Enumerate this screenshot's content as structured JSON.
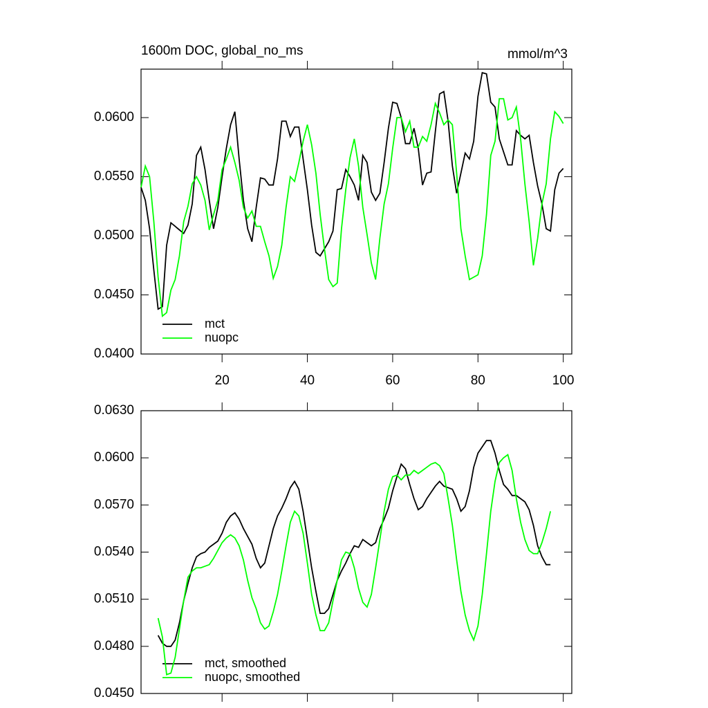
{
  "chart_data": [
    {
      "type": "line",
      "title": "1600m DOC, global_no_ms",
      "units": "mmol/m^3",
      "x": [
        1,
        2,
        3,
        4,
        5,
        6,
        7,
        8,
        9,
        10,
        11,
        12,
        13,
        14,
        15,
        16,
        17,
        18,
        19,
        20,
        21,
        22,
        23,
        24,
        25,
        26,
        27,
        28,
        29,
        30,
        31,
        32,
        33,
        34,
        35,
        36,
        37,
        38,
        39,
        40,
        41,
        42,
        43,
        44,
        45,
        46,
        47,
        48,
        49,
        50,
        51,
        52,
        53,
        54,
        55,
        56,
        57,
        58,
        59,
        60,
        61,
        62,
        63,
        64,
        65,
        66,
        67,
        68,
        69,
        70,
        71,
        72,
        73,
        74,
        75,
        76,
        77,
        78,
        79,
        80,
        81,
        82,
        83,
        84,
        85,
        86,
        87,
        88,
        89,
        90,
        91,
        92,
        93,
        94,
        95,
        96,
        97,
        98,
        99,
        100
      ],
      "xlim": [
        1,
        102
      ],
      "xticks": [
        20,
        40,
        60,
        80,
        100
      ],
      "ylim": [
        0.04,
        0.0641
      ],
      "yticks": [
        {
          "value": 0.04,
          "label": "0.0400"
        },
        {
          "value": 0.045,
          "label": "0.0450"
        },
        {
          "value": 0.05,
          "label": "0.0500"
        },
        {
          "value": 0.055,
          "label": "0.0550"
        },
        {
          "value": 0.06,
          "label": "0.0600"
        }
      ],
      "legend": "lower left",
      "series": [
        {
          "name": "mct",
          "color": "#000000",
          "values": [
            0.0541,
            0.053,
            0.0506,
            0.0471,
            0.0438,
            0.044,
            0.0492,
            0.0511,
            0.0508,
            0.0505,
            0.0502,
            0.0509,
            0.0527,
            0.0568,
            0.0575,
            0.0556,
            0.053,
            0.0506,
            0.0524,
            0.055,
            0.0574,
            0.0594,
            0.0605,
            0.0565,
            0.053,
            0.0506,
            0.0495,
            0.0524,
            0.0549,
            0.0548,
            0.0543,
            0.0543,
            0.0565,
            0.0597,
            0.0597,
            0.0584,
            0.0592,
            0.0592,
            0.0565,
            0.0539,
            0.0509,
            0.0486,
            0.0483,
            0.0489,
            0.0495,
            0.0504,
            0.0539,
            0.054,
            0.0556,
            0.055,
            0.0543,
            0.053,
            0.0568,
            0.0562,
            0.0537,
            0.053,
            0.0536,
            0.0562,
            0.0591,
            0.0613,
            0.0612,
            0.06,
            0.0578,
            0.0578,
            0.0591,
            0.0574,
            0.0543,
            0.0553,
            0.0554,
            0.0588,
            0.062,
            0.0622,
            0.0597,
            0.0559,
            0.0536,
            0.0553,
            0.057,
            0.0565,
            0.058,
            0.0618,
            0.0638,
            0.0637,
            0.0613,
            0.0609,
            0.0582,
            0.0571,
            0.056,
            0.056,
            0.0589,
            0.0585,
            0.0582,
            0.0585,
            0.0562,
            0.0542,
            0.0527,
            0.0506,
            0.0504,
            0.0539,
            0.0553,
            0.0557
          ]
        },
        {
          "name": "nuopc",
          "color": "#00ff00",
          "values": [
            0.0541,
            0.0559,
            0.055,
            0.0512,
            0.0465,
            0.0432,
            0.0435,
            0.0454,
            0.0463,
            0.0483,
            0.0512,
            0.0525,
            0.0544,
            0.055,
            0.0543,
            0.053,
            0.0505,
            0.0518,
            0.053,
            0.0556,
            0.0565,
            0.0575,
            0.0562,
            0.0547,
            0.0524,
            0.0515,
            0.0521,
            0.0508,
            0.0508,
            0.0495,
            0.0483,
            0.0464,
            0.0474,
            0.0492,
            0.0524,
            0.055,
            0.0546,
            0.0562,
            0.058,
            0.0594,
            0.0577,
            0.0553,
            0.0518,
            0.0489,
            0.0463,
            0.0457,
            0.046,
            0.0506,
            0.0539,
            0.0566,
            0.0582,
            0.0559,
            0.0524,
            0.0501,
            0.0477,
            0.0463,
            0.0498,
            0.0527,
            0.0544,
            0.0574,
            0.06,
            0.06,
            0.0588,
            0.0597,
            0.0575,
            0.0575,
            0.0584,
            0.058,
            0.0594,
            0.0612,
            0.0604,
            0.0594,
            0.0598,
            0.0594,
            0.0553,
            0.0506,
            0.0483,
            0.0463,
            0.0465,
            0.0467,
            0.0483,
            0.0518,
            0.0568,
            0.058,
            0.0616,
            0.0616,
            0.0598,
            0.06,
            0.0609,
            0.0582,
            0.0544,
            0.0512,
            0.0475,
            0.0498,
            0.0527,
            0.0544,
            0.0582,
            0.0605,
            0.0601,
            0.0595
          ]
        }
      ]
    },
    {
      "type": "line",
      "x": [
        1,
        2,
        3,
        4,
        5,
        6,
        7,
        8,
        9,
        10,
        11,
        12,
        13,
        14,
        15,
        16,
        17,
        18,
        19,
        20,
        21,
        22,
        23,
        24,
        25,
        26,
        27,
        28,
        29,
        30,
        31,
        32,
        33,
        34,
        35,
        36,
        37,
        38,
        39,
        40,
        41,
        42,
        43,
        44,
        45,
        46,
        47,
        48,
        49,
        50,
        51,
        52,
        53,
        54,
        55,
        56,
        57,
        58,
        59,
        60,
        61,
        62,
        63,
        64,
        65,
        66,
        67,
        68,
        69,
        70,
        71,
        72,
        73,
        74,
        75,
        76,
        77,
        78,
        79,
        80,
        81,
        82,
        83,
        84,
        85,
        86,
        87,
        88,
        89,
        90,
        91,
        92,
        93,
        94,
        95,
        96,
        97,
        98,
        99,
        100
      ],
      "xlim": [
        1,
        102
      ],
      "xticks": [
        20,
        40,
        60,
        80,
        100
      ],
      "xtick_labels": false,
      "ylim": [
        0.045,
        0.063
      ],
      "yticks": [
        {
          "value": 0.045,
          "label": "0.0450"
        },
        {
          "value": 0.048,
          "label": "0.0480"
        },
        {
          "value": 0.051,
          "label": "0.0510"
        },
        {
          "value": 0.054,
          "label": "0.0540"
        },
        {
          "value": 0.057,
          "label": "0.0570"
        },
        {
          "value": 0.06,
          "label": "0.0600"
        },
        {
          "value": 0.063,
          "label": "0.0630"
        }
      ],
      "legend": "lower left",
      "series": [
        {
          "name": "mct, smoothed",
          "color": "#000000",
          "values": [
            null,
            null,
            null,
            null,
            0.0487,
            0.0482,
            0.048,
            0.048,
            0.0484,
            0.0495,
            0.0509,
            0.052,
            0.053,
            0.0537,
            0.0539,
            0.054,
            0.0543,
            0.0545,
            0.0547,
            0.0552,
            0.0559,
            0.0563,
            0.0565,
            0.0561,
            0.0555,
            0.055,
            0.0545,
            0.0536,
            0.053,
            0.0533,
            0.0544,
            0.0555,
            0.0563,
            0.0568,
            0.0574,
            0.0581,
            0.0585,
            0.058,
            0.0566,
            0.0548,
            0.053,
            0.0515,
            0.0501,
            0.0501,
            0.0504,
            0.0513,
            0.0522,
            0.0528,
            0.0533,
            0.0539,
            0.0544,
            0.0543,
            0.0548,
            0.0546,
            0.0544,
            0.0546,
            0.0555,
            0.0561,
            0.0568,
            0.0579,
            0.0588,
            0.0596,
            0.0593,
            0.0583,
            0.0574,
            0.0567,
            0.0569,
            0.0574,
            0.0578,
            0.0582,
            0.0585,
            0.0582,
            0.0581,
            0.058,
            0.0574,
            0.0566,
            0.0569,
            0.0579,
            0.0594,
            0.0603,
            0.0607,
            0.0611,
            0.0611,
            0.0603,
            0.0592,
            0.0583,
            0.058,
            0.0576,
            0.0576,
            0.0574,
            0.0572,
            0.0567,
            0.0557,
            0.0544,
            0.0537,
            0.0532,
            0.0532,
            null,
            null,
            null
          ]
        },
        {
          "name": "nuopc, smoothed",
          "color": "#00ff00",
          "values": [
            null,
            null,
            null,
            null,
            0.0498,
            0.0486,
            0.0462,
            0.0463,
            0.0473,
            0.0491,
            0.0509,
            0.0524,
            0.0528,
            0.053,
            0.053,
            0.0531,
            0.0532,
            0.0536,
            0.0541,
            0.0546,
            0.0549,
            0.0551,
            0.0549,
            0.0544,
            0.0535,
            0.0522,
            0.0511,
            0.0504,
            0.0495,
            0.0491,
            0.0493,
            0.0502,
            0.0513,
            0.0528,
            0.0544,
            0.0559,
            0.0566,
            0.0563,
            0.0552,
            0.0533,
            0.0513,
            0.05,
            0.049,
            0.049,
            0.0495,
            0.0509,
            0.0522,
            0.0535,
            0.054,
            0.0539,
            0.053,
            0.0517,
            0.0508,
            0.0505,
            0.0513,
            0.053,
            0.0548,
            0.0566,
            0.058,
            0.0588,
            0.0589,
            0.0586,
            0.0589,
            0.0589,
            0.0592,
            0.059,
            0.0592,
            0.0594,
            0.0596,
            0.0597,
            0.0595,
            0.059,
            0.0574,
            0.0557,
            0.0535,
            0.0515,
            0.05,
            0.049,
            0.0484,
            0.0493,
            0.0513,
            0.0539,
            0.0566,
            0.0585,
            0.0597,
            0.06,
            0.0602,
            0.0592,
            0.0574,
            0.0559,
            0.0548,
            0.0541,
            0.0539,
            0.0539,
            0.0546,
            0.0555,
            0.0566,
            null,
            null,
            null
          ]
        }
      ]
    }
  ]
}
